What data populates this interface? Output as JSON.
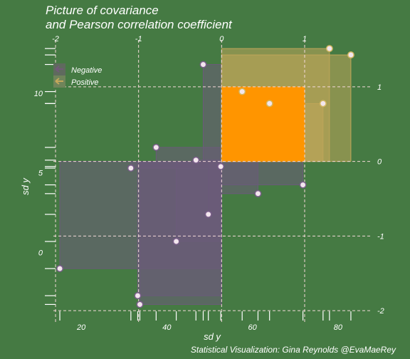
{
  "chart_data": {
    "type": "scatter",
    "title_lines": [
      "Picture of covariance",
      "and Pearson correlation coefficient"
    ],
    "caption": "Statistical Visualization: Gina Reynolds @EvaMaeRey",
    "xlabel": "sd y",
    "ylabel": "sd y",
    "xlim": [
      11.5,
      88
    ],
    "ylim": [
      -3.5,
      13.7
    ],
    "x_ticks": [
      20,
      40,
      60,
      80
    ],
    "y_ticks": [
      0,
      5,
      10
    ],
    "mean": [
      52.8,
      5.72
    ],
    "sd": [
      19.4,
      4.68
    ],
    "sd_ticks": [
      -2,
      -1,
      0,
      1,
      2
    ],
    "points": [
      {
        "x": 52.6,
        "y": 5.4,
        "group": "Negative"
      },
      {
        "x": 46.8,
        "y": 5.8,
        "group": "Negative"
      },
      {
        "x": 31.6,
        "y": 5.3,
        "group": "Negative"
      },
      {
        "x": 71.8,
        "y": 4.25,
        "group": "Negative"
      },
      {
        "x": 37.5,
        "y": 6.6,
        "group": "Negative"
      },
      {
        "x": 61.3,
        "y": 3.7,
        "group": "Negative"
      },
      {
        "x": 48.5,
        "y": 11.8,
        "group": "Negative"
      },
      {
        "x": 33.2,
        "y": -2.7,
        "group": "Negative"
      },
      {
        "x": 15.0,
        "y": -1.0,
        "group": "Negative"
      },
      {
        "x": 33.7,
        "y": -3.25,
        "group": "Negative"
      },
      {
        "x": 42.2,
        "y": 0.7,
        "group": "Negative"
      },
      {
        "x": 49.7,
        "y": 2.4,
        "group": "Negative"
      },
      {
        "x": 57.6,
        "y": 10.1,
        "group": "Positive"
      },
      {
        "x": 64.0,
        "y": 9.35,
        "group": "Positive"
      },
      {
        "x": 76.5,
        "y": 9.35,
        "group": "Positive"
      },
      {
        "x": 78.0,
        "y": 12.8,
        "group": "Positive"
      },
      {
        "x": 83.0,
        "y": 12.4,
        "group": "Positive"
      }
    ],
    "highlight": {
      "x": [
        52.8,
        72.2
      ],
      "y": [
        5.72,
        10.4
      ]
    },
    "legend": [
      {
        "label": "Negative",
        "color": "#73597a"
      },
      {
        "label": "Positive",
        "color": "#c4a85b"
      }
    ],
    "rug_x": [
      15.0,
      31.6,
      33.2,
      33.7,
      37.5,
      42.2,
      46.8,
      48.5,
      49.7,
      52.6,
      57.6,
      61.3,
      64.0,
      71.8,
      76.5,
      78.0,
      83.0
    ],
    "rug_y": [
      -3.25,
      -2.7,
      -1.0,
      0.7,
      2.4,
      3.7,
      4.25,
      5.3,
      5.4,
      5.8,
      6.6,
      9.35,
      9.35,
      10.1,
      11.8,
      12.4,
      12.8
    ],
    "grid": false,
    "legend_position": "top-left"
  },
  "style": {
    "background": "#457a43",
    "highlight": "#ff9500",
    "negative_fill": "#6b5b7a",
    "positive_fill": "#bfa65a",
    "reference_line": "#f4d9d9",
    "text": "#ffffff"
  }
}
